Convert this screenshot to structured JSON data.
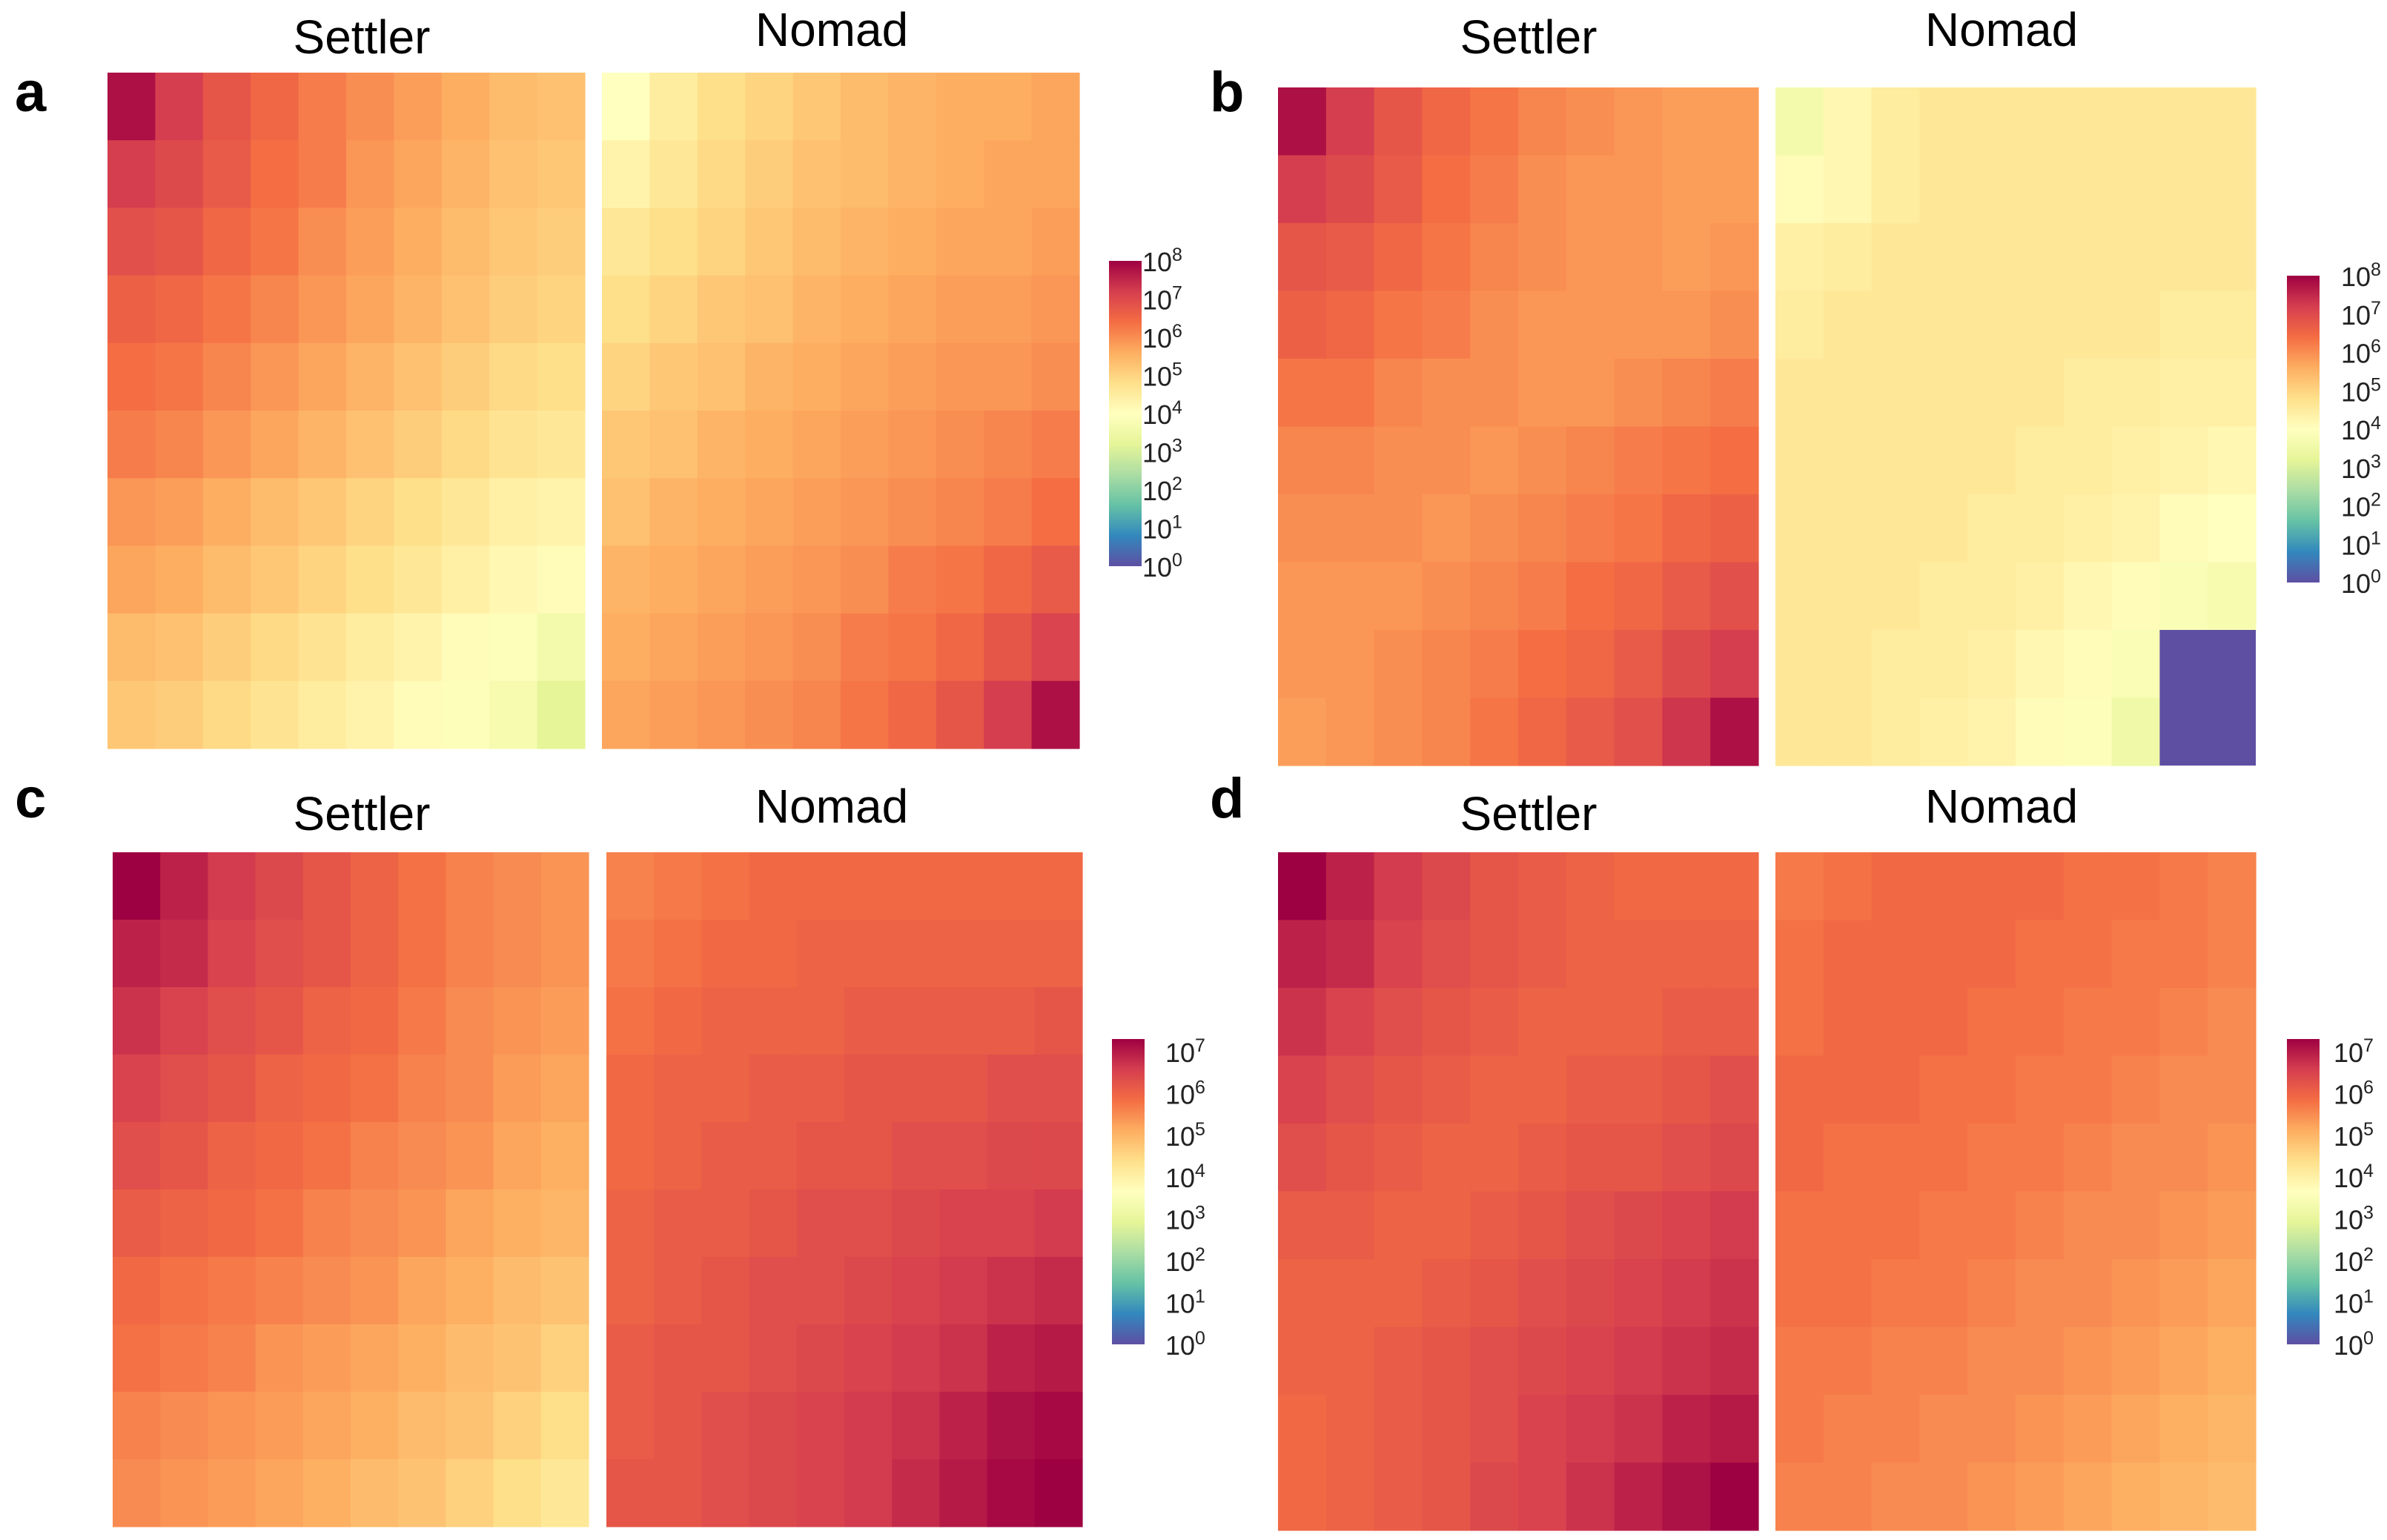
{
  "colors": {
    "colormap": [
      "#5e4fa2",
      "#3288bd",
      "#66c2a5",
      "#abdda4",
      "#e6f598",
      "#ffffbf",
      "#fee08b",
      "#fdae61",
      "#f46d43",
      "#d53e4f",
      "#9e0142"
    ],
    "masked_cell": "#5e4fa2"
  },
  "chart_data": [
    {
      "panel": "a",
      "type": "heatmap",
      "left_title": "Settler",
      "right_title": "Nomad",
      "scale": "log10",
      "colorbar_range_exp": [
        0,
        8
      ],
      "colorbar_ticks": [
        {
          "base": "10",
          "exp": "0"
        },
        {
          "base": "10",
          "exp": "1"
        },
        {
          "base": "10",
          "exp": "2"
        },
        {
          "base": "10",
          "exp": "3"
        },
        {
          "base": "10",
          "exp": "4"
        },
        {
          "base": "10",
          "exp": "5"
        },
        {
          "base": "10",
          "exp": "6"
        },
        {
          "base": "10",
          "exp": "7"
        },
        {
          "base": "10",
          "exp": "8"
        }
      ],
      "settler_log10": [
        [
          7.8,
          7.2,
          6.8,
          6.5,
          6.2,
          6.0,
          5.8,
          5.6,
          5.4,
          5.3
        ],
        [
          7.2,
          7.0,
          6.7,
          6.4,
          6.2,
          5.9,
          5.7,
          5.5,
          5.3,
          5.2
        ],
        [
          6.9,
          6.8,
          6.5,
          6.3,
          6.0,
          5.8,
          5.6,
          5.4,
          5.2,
          5.1
        ],
        [
          6.6,
          6.5,
          6.3,
          6.1,
          5.9,
          5.7,
          5.5,
          5.3,
          5.1,
          5.0
        ],
        [
          6.4,
          6.3,
          6.1,
          5.9,
          5.7,
          5.5,
          5.3,
          5.1,
          4.9,
          4.8
        ],
        [
          6.2,
          6.1,
          5.9,
          5.7,
          5.5,
          5.3,
          5.1,
          4.9,
          4.7,
          4.6
        ],
        [
          5.9,
          5.8,
          5.6,
          5.4,
          5.2,
          5.0,
          4.8,
          4.6,
          4.4,
          4.3
        ],
        [
          5.7,
          5.6,
          5.4,
          5.2,
          5.0,
          4.8,
          4.6,
          4.4,
          4.2,
          4.1
        ],
        [
          5.4,
          5.3,
          5.1,
          4.9,
          4.7,
          4.5,
          4.3,
          4.1,
          3.9,
          3.6
        ],
        [
          5.2,
          5.1,
          4.9,
          4.7,
          4.5,
          4.3,
          4.1,
          3.9,
          3.7,
          3.2
        ]
      ],
      "nomad_log10": [
        [
          4.0,
          4.5,
          4.8,
          5.0,
          5.2,
          5.4,
          5.5,
          5.6,
          5.6,
          5.7
        ],
        [
          4.3,
          4.6,
          4.9,
          5.1,
          5.3,
          5.4,
          5.5,
          5.6,
          5.7,
          5.7
        ],
        [
          4.6,
          4.8,
          5.0,
          5.2,
          5.4,
          5.5,
          5.6,
          5.7,
          5.7,
          5.8
        ],
        [
          4.8,
          5.0,
          5.2,
          5.3,
          5.5,
          5.6,
          5.7,
          5.8,
          5.8,
          5.9
        ],
        [
          5.0,
          5.2,
          5.3,
          5.5,
          5.6,
          5.7,
          5.8,
          5.9,
          5.9,
          6.0
        ],
        [
          5.2,
          5.3,
          5.5,
          5.6,
          5.7,
          5.8,
          5.9,
          6.0,
          6.1,
          6.2
        ],
        [
          5.3,
          5.5,
          5.6,
          5.7,
          5.8,
          5.9,
          6.0,
          6.1,
          6.2,
          6.4
        ],
        [
          5.5,
          5.6,
          5.7,
          5.8,
          5.9,
          6.0,
          6.2,
          6.3,
          6.5,
          6.7
        ],
        [
          5.6,
          5.7,
          5.8,
          5.9,
          6.0,
          6.2,
          6.3,
          6.5,
          6.8,
          7.1
        ],
        [
          5.7,
          5.8,
          5.9,
          6.0,
          6.1,
          6.3,
          6.5,
          6.8,
          7.2,
          7.8
        ]
      ]
    },
    {
      "panel": "b",
      "type": "heatmap",
      "left_title": "Settler",
      "right_title": "Nomad",
      "scale": "log10",
      "colorbar_range_exp": [
        0,
        8
      ],
      "colorbar_ticks": [
        {
          "base": "10",
          "exp": "0"
        },
        {
          "base": "10",
          "exp": "1"
        },
        {
          "base": "10",
          "exp": "2"
        },
        {
          "base": "10",
          "exp": "3"
        },
        {
          "base": "10",
          "exp": "4"
        },
        {
          "base": "10",
          "exp": "5"
        },
        {
          "base": "10",
          "exp": "6"
        },
        {
          "base": "10",
          "exp": "7"
        },
        {
          "base": "10",
          "exp": "8"
        }
      ],
      "settler_log10": [
        [
          7.8,
          7.2,
          6.8,
          6.5,
          6.3,
          6.1,
          6.0,
          5.9,
          5.8,
          5.8
        ],
        [
          7.2,
          7.0,
          6.7,
          6.4,
          6.2,
          6.0,
          5.9,
          5.9,
          5.8,
          5.8
        ],
        [
          6.8,
          6.7,
          6.5,
          6.3,
          6.1,
          6.0,
          5.9,
          5.9,
          5.8,
          5.9
        ],
        [
          6.6,
          6.5,
          6.3,
          6.2,
          6.0,
          5.9,
          5.9,
          5.9,
          5.9,
          6.0
        ],
        [
          6.3,
          6.3,
          6.1,
          6.0,
          6.0,
          5.9,
          5.9,
          6.0,
          6.1,
          6.2
        ],
        [
          6.1,
          6.1,
          6.0,
          6.0,
          5.9,
          6.0,
          6.1,
          6.2,
          6.3,
          6.4
        ],
        [
          6.0,
          6.0,
          6.0,
          5.9,
          6.0,
          6.1,
          6.2,
          6.3,
          6.5,
          6.6
        ],
        [
          5.9,
          5.9,
          5.9,
          6.0,
          6.1,
          6.2,
          6.4,
          6.5,
          6.7,
          6.9
        ],
        [
          5.9,
          5.9,
          6.0,
          6.1,
          6.2,
          6.4,
          6.5,
          6.7,
          7.0,
          7.2
        ],
        [
          5.8,
          5.9,
          6.0,
          6.1,
          6.3,
          6.5,
          6.7,
          6.9,
          7.3,
          7.8
        ]
      ],
      "nomad_log10": [
        [
          3.6,
          4.2,
          4.5,
          4.6,
          4.6,
          4.6,
          4.6,
          4.6,
          4.6,
          4.6
        ],
        [
          4.1,
          4.2,
          4.5,
          4.6,
          4.6,
          4.6,
          4.6,
          4.6,
          4.6,
          4.6
        ],
        [
          4.4,
          4.5,
          4.6,
          4.6,
          4.6,
          4.6,
          4.6,
          4.6,
          4.6,
          4.6
        ],
        [
          4.5,
          4.6,
          4.6,
          4.6,
          4.6,
          4.6,
          4.6,
          4.6,
          4.5,
          4.5
        ],
        [
          4.6,
          4.6,
          4.6,
          4.6,
          4.6,
          4.6,
          4.5,
          4.5,
          4.4,
          4.4
        ],
        [
          4.6,
          4.6,
          4.6,
          4.6,
          4.6,
          4.5,
          4.5,
          4.4,
          4.3,
          4.2
        ],
        [
          4.6,
          4.6,
          4.6,
          4.6,
          4.5,
          4.5,
          4.4,
          4.3,
          4.1,
          4.0
        ],
        [
          4.6,
          4.6,
          4.6,
          4.5,
          4.5,
          4.4,
          4.2,
          4.1,
          3.8,
          3.7
        ],
        [
          4.6,
          4.6,
          4.5,
          4.5,
          4.4,
          4.2,
          4.1,
          3.8,
          null,
          null
        ],
        [
          4.6,
          4.6,
          4.5,
          4.4,
          4.3,
          4.1,
          3.9,
          3.5,
          null,
          null
        ]
      ],
      "nomad_masked_block_value_exp": 0
    },
    {
      "panel": "c",
      "type": "heatmap",
      "left_title": "Settler",
      "right_title": "Nomad",
      "scale": "log10",
      "colorbar_range_exp": [
        0,
        7.3
      ],
      "colorbar_ticks": [
        {
          "base": "10",
          "exp": "0"
        },
        {
          "base": "10",
          "exp": "1"
        },
        {
          "base": "10",
          "exp": "2"
        },
        {
          "base": "10",
          "exp": "3"
        },
        {
          "base": "10",
          "exp": "4"
        },
        {
          "base": "10",
          "exp": "5"
        },
        {
          "base": "10",
          "exp": "6"
        },
        {
          "base": "10",
          "exp": "7"
        }
      ],
      "settler_log10": [
        [
          7.3,
          6.9,
          6.6,
          6.4,
          6.2,
          6.0,
          5.8,
          5.6,
          5.5,
          5.4
        ],
        [
          6.9,
          6.8,
          6.5,
          6.3,
          6.2,
          6.0,
          5.8,
          5.6,
          5.5,
          5.4
        ],
        [
          6.7,
          6.5,
          6.3,
          6.2,
          6.0,
          5.9,
          5.7,
          5.5,
          5.4,
          5.3
        ],
        [
          6.5,
          6.3,
          6.2,
          6.0,
          5.9,
          5.8,
          5.6,
          5.5,
          5.3,
          5.2
        ],
        [
          6.3,
          6.2,
          6.0,
          5.9,
          5.8,
          5.6,
          5.5,
          5.4,
          5.2,
          5.1
        ],
        [
          6.1,
          6.0,
          5.9,
          5.8,
          5.6,
          5.5,
          5.4,
          5.2,
          5.1,
          5.0
        ],
        [
          5.9,
          5.8,
          5.7,
          5.6,
          5.5,
          5.4,
          5.2,
          5.1,
          4.9,
          4.8
        ],
        [
          5.8,
          5.7,
          5.6,
          5.4,
          5.3,
          5.2,
          5.1,
          4.9,
          4.8,
          4.6
        ],
        [
          5.6,
          5.5,
          5.4,
          5.3,
          5.2,
          5.1,
          4.9,
          4.8,
          4.6,
          4.4
        ],
        [
          5.5,
          5.4,
          5.3,
          5.2,
          5.1,
          4.9,
          4.8,
          4.6,
          4.4,
          4.2
        ]
      ],
      "nomad_log10": [
        [
          5.6,
          5.7,
          5.8,
          5.9,
          5.9,
          5.9,
          5.9,
          5.9,
          5.9,
          5.9
        ],
        [
          5.7,
          5.8,
          5.9,
          5.9,
          6.0,
          6.0,
          6.0,
          6.0,
          6.0,
          6.0
        ],
        [
          5.8,
          5.9,
          6.0,
          6.0,
          6.0,
          6.1,
          6.1,
          6.1,
          6.1,
          6.2
        ],
        [
          5.9,
          6.0,
          6.0,
          6.1,
          6.1,
          6.2,
          6.2,
          6.2,
          6.3,
          6.3
        ],
        [
          5.9,
          6.0,
          6.1,
          6.1,
          6.2,
          6.2,
          6.3,
          6.3,
          6.4,
          6.4
        ],
        [
          6.0,
          6.1,
          6.1,
          6.2,
          6.3,
          6.3,
          6.4,
          6.5,
          6.5,
          6.6
        ],
        [
          6.0,
          6.1,
          6.2,
          6.3,
          6.3,
          6.4,
          6.5,
          6.6,
          6.7,
          6.8
        ],
        [
          6.1,
          6.2,
          6.2,
          6.3,
          6.4,
          6.5,
          6.6,
          6.7,
          6.9,
          7.0
        ],
        [
          6.1,
          6.2,
          6.3,
          6.4,
          6.5,
          6.6,
          6.7,
          6.9,
          7.1,
          7.2
        ],
        [
          6.2,
          6.2,
          6.3,
          6.4,
          6.5,
          6.6,
          6.8,
          7.0,
          7.2,
          7.4
        ]
      ]
    },
    {
      "panel": "d",
      "type": "heatmap",
      "left_title": "Settler",
      "right_title": "Nomad",
      "scale": "log10",
      "colorbar_range_exp": [
        0,
        7.3
      ],
      "colorbar_ticks": [
        {
          "base": "10",
          "exp": "0"
        },
        {
          "base": "10",
          "exp": "1"
        },
        {
          "base": "10",
          "exp": "2"
        },
        {
          "base": "10",
          "exp": "3"
        },
        {
          "base": "10",
          "exp": "4"
        },
        {
          "base": "10",
          "exp": "5"
        },
        {
          "base": "10",
          "exp": "6"
        },
        {
          "base": "10",
          "exp": "7"
        }
      ],
      "settler_log10": [
        [
          7.3,
          6.9,
          6.6,
          6.4,
          6.2,
          6.1,
          6.0,
          5.9,
          5.9,
          5.9
        ],
        [
          6.9,
          6.8,
          6.5,
          6.3,
          6.2,
          6.1,
          6.0,
          6.0,
          6.0,
          6.0
        ],
        [
          6.7,
          6.5,
          6.3,
          6.2,
          6.1,
          6.0,
          6.0,
          6.0,
          6.1,
          6.1
        ],
        [
          6.5,
          6.3,
          6.2,
          6.1,
          6.0,
          6.0,
          6.1,
          6.1,
          6.2,
          6.3
        ],
        [
          6.3,
          6.2,
          6.1,
          6.0,
          6.0,
          6.1,
          6.2,
          6.2,
          6.3,
          6.4
        ],
        [
          6.1,
          6.1,
          6.0,
          6.0,
          6.1,
          6.2,
          6.3,
          6.4,
          6.5,
          6.6
        ],
        [
          6.0,
          6.0,
          6.0,
          6.1,
          6.2,
          6.3,
          6.4,
          6.5,
          6.6,
          6.7
        ],
        [
          6.0,
          6.0,
          6.1,
          6.2,
          6.3,
          6.4,
          6.5,
          6.6,
          6.7,
          6.8
        ],
        [
          5.9,
          6.0,
          6.1,
          6.2,
          6.3,
          6.5,
          6.6,
          6.7,
          6.9,
          7.0
        ],
        [
          5.9,
          6.0,
          6.1,
          6.2,
          6.4,
          6.5,
          6.7,
          6.9,
          7.1,
          7.4
        ]
      ],
      "nomad_log10": [
        [
          5.7,
          5.8,
          5.9,
          5.9,
          5.9,
          5.9,
          5.8,
          5.8,
          5.7,
          5.6
        ],
        [
          5.8,
          5.9,
          5.9,
          5.9,
          5.9,
          5.8,
          5.8,
          5.7,
          5.7,
          5.6
        ],
        [
          5.8,
          5.9,
          5.9,
          5.9,
          5.8,
          5.8,
          5.7,
          5.7,
          5.6,
          5.5
        ],
        [
          5.9,
          5.9,
          5.9,
          5.8,
          5.8,
          5.7,
          5.7,
          5.6,
          5.5,
          5.5
        ],
        [
          5.9,
          5.8,
          5.8,
          5.8,
          5.7,
          5.7,
          5.6,
          5.5,
          5.5,
          5.4
        ],
        [
          5.8,
          5.8,
          5.8,
          5.7,
          5.7,
          5.6,
          5.5,
          5.5,
          5.4,
          5.3
        ],
        [
          5.8,
          5.8,
          5.7,
          5.7,
          5.6,
          5.5,
          5.5,
          5.4,
          5.3,
          5.2
        ],
        [
          5.7,
          5.7,
          5.6,
          5.6,
          5.5,
          5.5,
          5.4,
          5.3,
          5.2,
          5.1
        ],
        [
          5.7,
          5.6,
          5.6,
          5.5,
          5.5,
          5.4,
          5.3,
          5.2,
          5.1,
          5.0
        ],
        [
          5.6,
          5.6,
          5.5,
          5.5,
          5.4,
          5.3,
          5.2,
          5.1,
          5.0,
          4.9
        ]
      ]
    }
  ]
}
